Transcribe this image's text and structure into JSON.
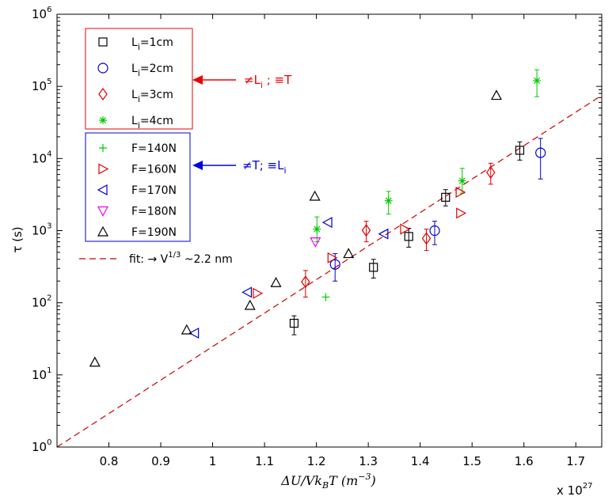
{
  "chart_data": {
    "type": "scatter",
    "xlabel": "ΔU/Vk_BT (m^-3)",
    "xlabel_parts": {
      "main": "ΔU/Vk",
      "sub": "B",
      "after_sub": "T (m",
      "sup": "−3",
      "close": ")"
    },
    "ylabel": "τ (s)",
    "x_multiplier": "x 10^27",
    "x_multiplier_parts": {
      "base": "x 10",
      "exp": "27"
    },
    "xlim": [
      0.7,
      1.75
    ],
    "ylim": [
      1,
      1000000
    ],
    "yscale": "log",
    "x_ticks": [
      "0.8",
      "0.9",
      "1",
      "1.1",
      "1.2",
      "1.3",
      "1.4",
      "1.5",
      "1.6",
      "1.7"
    ],
    "x_tick_values": [
      0.8,
      0.9,
      1.0,
      1.1,
      1.2,
      1.3,
      1.4,
      1.5,
      1.6,
      1.7
    ],
    "y_ticks": [
      {
        "value": 1,
        "base": "10",
        "exp": "0"
      },
      {
        "value": 10,
        "base": "10",
        "exp": "1"
      },
      {
        "value": 100,
        "base": "10",
        "exp": "2"
      },
      {
        "value": 1000,
        "base": "10",
        "exp": "3"
      },
      {
        "value": 10000,
        "base": "10",
        "exp": "4"
      },
      {
        "value": 100000,
        "base": "10",
        "exp": "5"
      },
      {
        "value": 1000000,
        "base": "10",
        "exp": "6"
      }
    ],
    "grid": false,
    "legend_position": "top-left",
    "series": [
      {
        "name": "L_i=1cm",
        "label": {
          "main": "L",
          "sub": "i",
          "rest": "=1cm"
        },
        "marker": "square",
        "color": "#000000",
        "group": "L",
        "points": [
          {
            "x": 1.157,
            "y": 52,
            "err": [
              36,
              66
            ]
          },
          {
            "x": 1.31,
            "y": 310,
            "err": [
              220,
              400
            ]
          },
          {
            "x": 1.378,
            "y": 830,
            "err": [
              590,
              1080
            ]
          },
          {
            "x": 1.449,
            "y": 2900,
            "err": [
              2200,
              3700
            ]
          },
          {
            "x": 1.592,
            "y": 13000,
            "err": [
              9500,
              17000
            ]
          }
        ]
      },
      {
        "name": "L_i=2cm",
        "label": {
          "main": "L",
          "sub": "i",
          "rest": "=2cm"
        },
        "marker": "circle",
        "color": "#0000cc",
        "group": "L",
        "points": [
          {
            "x": 1.236,
            "y": 340,
            "err": [
              200,
              480
            ]
          },
          {
            "x": 1.428,
            "y": 1000,
            "err": [
              640,
              1350
            ]
          },
          {
            "x": 1.632,
            "y": 12000,
            "err": [
              5200,
              19000
            ]
          }
        ]
      },
      {
        "name": "L_i=3cm",
        "label": {
          "main": "L",
          "sub": "i",
          "rest": "=3cm"
        },
        "marker": "diamond",
        "color": "#dd0000",
        "group": "L",
        "points": [
          {
            "x": 1.179,
            "y": 195,
            "err": [
              120,
              280
            ]
          },
          {
            "x": 1.296,
            "y": 1010,
            "err": [
              700,
              1350
            ]
          },
          {
            "x": 1.412,
            "y": 780,
            "err": [
              530,
              1050
            ]
          },
          {
            "x": 1.536,
            "y": 6400,
            "err": [
              4400,
              8600
            ]
          }
        ]
      },
      {
        "name": "L_i=4cm",
        "label": {
          "main": "L",
          "sub": "i",
          "rest": "=4cm"
        },
        "marker": "asterisk",
        "color": "#00c800",
        "group": "L",
        "points": [
          {
            "x": 1.201,
            "y": 1050,
            "err": [
              700,
              1550
            ]
          },
          {
            "x": 1.339,
            "y": 2600,
            "err": [
              1700,
              3500
            ]
          },
          {
            "x": 1.481,
            "y": 4900,
            "err": [
              3300,
              7300
            ]
          },
          {
            "x": 1.625,
            "y": 120000,
            "err": [
              72000,
              170000
            ]
          }
        ]
      },
      {
        "name": "F=140N",
        "marker": "plus",
        "color": "#00c800",
        "group": "F",
        "points": [
          {
            "x": 1.218,
            "y": 120
          }
        ]
      },
      {
        "name": "F=160N",
        "marker": "triangle-right",
        "color": "#dd0000",
        "group": "F",
        "points": [
          {
            "x": 1.086,
            "y": 135
          },
          {
            "x": 1.23,
            "y": 420
          },
          {
            "x": 1.37,
            "y": 1050
          },
          {
            "x": 1.477,
            "y": 3400
          },
          {
            "x": 1.478,
            "y": 1750
          }
        ]
      },
      {
        "name": "F=170N",
        "marker": "triangle-left",
        "color": "#0000cc",
        "group": "F",
        "points": [
          {
            "x": 0.965,
            "y": 38
          },
          {
            "x": 1.067,
            "y": 140
          },
          {
            "x": 1.222,
            "y": 1300
          },
          {
            "x": 1.33,
            "y": 900
          }
        ]
      },
      {
        "name": "F=180N",
        "marker": "triangle-down",
        "color": "#ee00ee",
        "group": "F",
        "points": [
          {
            "x": 1.198,
            "y": 700
          }
        ]
      },
      {
        "name": "F=190N",
        "marker": "triangle-up",
        "color": "#000000",
        "group": "F",
        "points": [
          {
            "x": 0.773,
            "y": 15
          },
          {
            "x": 0.95,
            "y": 42
          },
          {
            "x": 1.072,
            "y": 92
          },
          {
            "x": 1.122,
            "y": 190
          },
          {
            "x": 1.197,
            "y": 3000
          },
          {
            "x": 1.262,
            "y": 480
          },
          {
            "x": 1.547,
            "y": 75000
          }
        ]
      }
    ],
    "fit": {
      "name": "fit: → V^1/3 ~2.2 nm",
      "label": {
        "pre": "fit: → V",
        "sup": "1/3",
        "post": " ~2.2 nm"
      },
      "color": "#cc0000",
      "style": "dashed",
      "points": [
        {
          "x": 0.7,
          "y": 1
        },
        {
          "x": 1.75,
          "y": 75000
        }
      ]
    },
    "annotations": [
      {
        "id": "L-group",
        "parts": {
          "pre": "≠L",
          "sub": "i",
          "post": " ; ≡T"
        },
        "color": "#ee0000",
        "points_to": "L legend group"
      },
      {
        "id": "F-group",
        "parts": {
          "pre": "≠T; ≡L",
          "sub": "i",
          "post": ""
        },
        "color": "#0000dd",
        "points_to": "F legend group"
      }
    ]
  }
}
